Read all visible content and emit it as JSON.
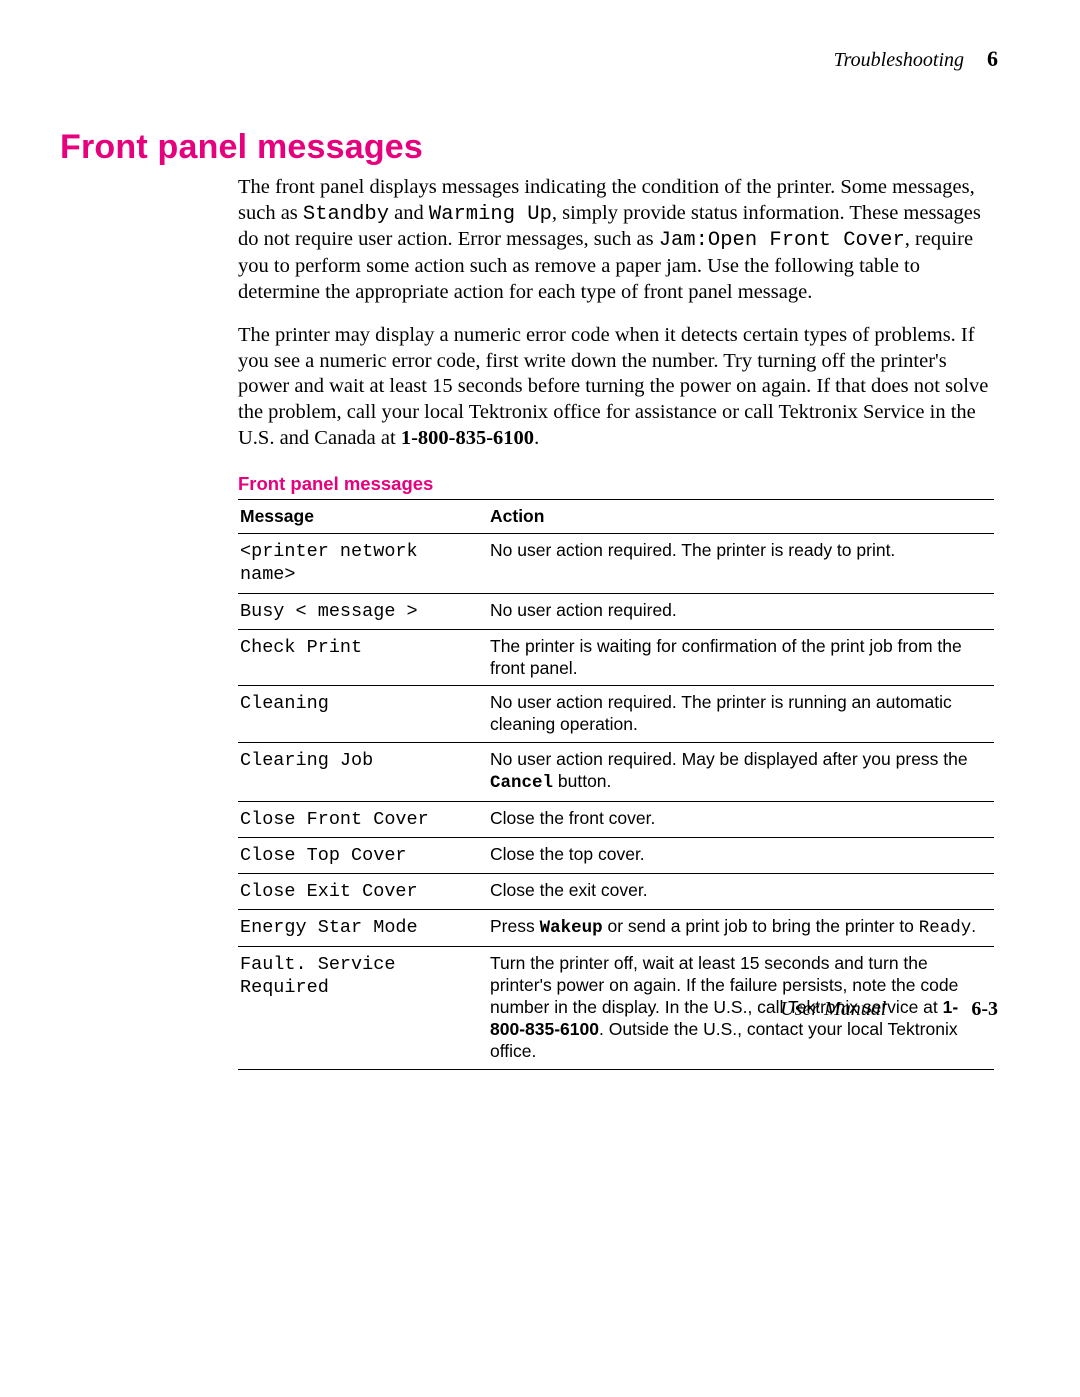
{
  "header": {
    "section": "Troubleshooting",
    "chapter_number": "6"
  },
  "title": "Front panel messages",
  "paragraphs": {
    "p1_a": "The front panel displays messages indicating the condition of the printer. Some messages, such as ",
    "p1_m1": "Standby",
    "p1_b": " and ",
    "p1_m2": "Warming Up",
    "p1_c": ", simply provide status information.  These messages do not require user action.  Error messages, such as ",
    "p1_m3": "Jam:Open Front Cover",
    "p1_d": ", require you to perform some action such as remove a paper jam.  Use the following table to determine the appropriate action for each type of front panel message.",
    "p2_a": "The printer may display a numeric error code when it detects certain types of problems.  If you see a numeric error code, first write down the number.  Try turning off the printer's power and wait at least 15 seconds before turning the power on again.  If that does not solve the problem, call your local Tektronix office for assistance or call Tektronix Service in the U.S. and Canada at ",
    "p2_phone": "1-800-835-6100",
    "p2_b": "."
  },
  "table": {
    "caption": "Front panel messages",
    "head_message": "Message",
    "head_action": "Action",
    "rows": [
      {
        "msg": "<printer network name>",
        "action_plain": "No user action required.  The printer is ready to print."
      },
      {
        "msg": "Busy < message >",
        "action_plain": "No user action required."
      },
      {
        "msg": "Check Print",
        "action_plain": "The printer is waiting for confirmation of the print job from the front panel."
      },
      {
        "msg": "Cleaning",
        "action_plain": "No user action required.  The printer is running an automatic cleaning operation."
      },
      {
        "msg": "Clearing Job",
        "action_parts": {
          "a": "No user action required.  May be displayed after you press the ",
          "bold_mono": "Cancel",
          "b": " button."
        }
      },
      {
        "msg": "Close Front Cover",
        "action_plain": "Close the front cover."
      },
      {
        "msg": "Close Top Cover",
        "action_plain": "Close the top cover."
      },
      {
        "msg": "Close Exit Cover",
        "action_plain": "Close the exit cover."
      },
      {
        "msg": "Energy Star Mode",
        "action_parts": {
          "a": "Press ",
          "bold_mono": "Wakeup",
          "b": "  or send a print job to bring the printer to ",
          "mono": "Ready",
          "c": "."
        }
      },
      {
        "msg": "Fault.  Service Required",
        "action_parts": {
          "a": "Turn the printer off, wait at least 15 seconds and turn the printer's power on again.  If the failure persists, note the code number in the display.  In the U.S., call Tektronix service at ",
          "bold": "1-800-835-6100",
          "b": ".  Outside the U.S., contact your local Tektronix office."
        }
      }
    ]
  },
  "footer": {
    "label": "User Manual",
    "page": "6-3"
  },
  "colors": {
    "accent": "#e6007e",
    "text": "#000000",
    "background": "#ffffff"
  },
  "fonts": {
    "body": "Palatino",
    "sans": "Arial/Helvetica",
    "mono": "Courier"
  }
}
